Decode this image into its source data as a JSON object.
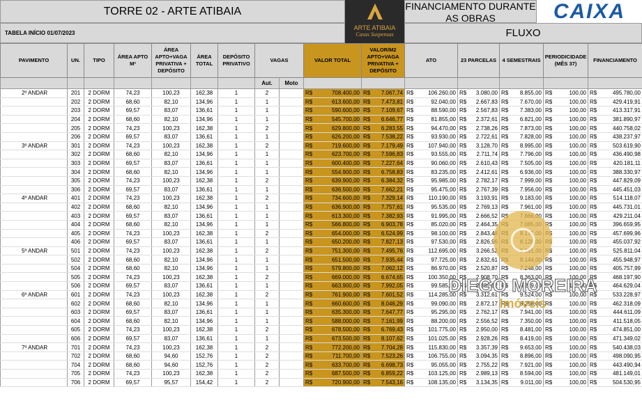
{
  "header": {
    "title": "TORRE 02 - ARTE ATIBAIA",
    "start": "TABELA INÍCIO 01/07/2023",
    "logo": "ARTE ATIBAIA",
    "logo_sub": "Casas Suspensas",
    "financing": "FINANCIAMENTO DURANTE AS OBRAS",
    "flow": "FLUXO",
    "bank": "CAIXA"
  },
  "watermark": {
    "name": "DIEGO MOREIRA",
    "sub": "Imóveis"
  },
  "table": {
    "currency": "R$",
    "headers": [
      "PAVIMENTO",
      "UN.",
      "TIPO",
      "ÁREA APTO M²",
      "ÁREA APTO+VAGA PRIVATIVA + DEPÓSITO",
      "ÁREA TOTAL",
      "DEPÓSITO PRIVATIVO",
      "VAGAS",
      "VALOR TOTAL",
      "VALOR/M2 APTO+VAGA PRIVATIVA + DEPÓSITO",
      "ATO",
      "23 PARCELAS",
      "4 SEMESTRAIS",
      "PERIODICIDADE (MÊS 37)",
      "FINANCIAMENTO"
    ],
    "subheaders": [
      "Aut.",
      "Moto"
    ],
    "groups": [
      {
        "floor": "2º ANDAR",
        "rows": [
          [
            "201",
            "2 DORM",
            "74,23",
            "100,23",
            "162,38",
            "1",
            "2",
            "708.400,00",
            "7.067,74",
            "106.260,00",
            "3.080,00",
            "8.855,00",
            "100,00",
            "495.780,00"
          ],
          [
            "202",
            "2 DORM",
            "68,60",
            "82,10",
            "134,96",
            "1",
            "1",
            "613.600,00",
            "7.473,81",
            "92.040,00",
            "2.667,83",
            "7.670,00",
            "100,00",
            "429.419,91"
          ],
          [
            "203",
            "2 DORM",
            "69,57",
            "83,07",
            "136,61",
            "1",
            "1",
            "590.600,00",
            "7.109,67",
            "88.590,00",
            "2.567,83",
            "7.383,00",
            "100,00",
            "413.317,91"
          ],
          [
            "204",
            "2 DORM",
            "68,60",
            "82,10",
            "134,96",
            "1",
            "1",
            "545.700,00",
            "6.646,77",
            "81.855,00",
            "2.372,61",
            "6.821,00",
            "100,00",
            "381.890,97"
          ],
          [
            "205",
            "2 DORM",
            "74,23",
            "100,23",
            "162,38",
            "1",
            "2",
            "629.800,00",
            "6.283,55",
            "94.470,00",
            "2.738,26",
            "7.873,00",
            "100,00",
            "440.758,02"
          ],
          [
            "206",
            "2 DORM",
            "69,57",
            "83,07",
            "136,61",
            "1",
            "1",
            "626.200,00",
            "7.538,22",
            "93.930,00",
            "2.722,61",
            "7.828,00",
            "100,00",
            "438.237,97"
          ]
        ]
      },
      {
        "floor": "3º ANDAR",
        "rows": [
          [
            "301",
            "2 DORM",
            "74,23",
            "100,23",
            "162,38",
            "1",
            "2",
            "719.600,00",
            "7.179,49",
            "107.940,00",
            "3.128,70",
            "8.995,00",
            "100,00",
            "503.619,90"
          ],
          [
            "302",
            "2 DORM",
            "68,60",
            "82,10",
            "134,96",
            "1",
            "1",
            "623.700,00",
            "7.596,83",
            "93.555,00",
            "2.711,74",
            "7.796,00",
            "100,00",
            "436.490,98"
          ],
          [
            "303",
            "2 DORM",
            "69,57",
            "83,07",
            "136,61",
            "1",
            "1",
            "600.400,00",
            "7.227,64",
            "90.060,00",
            "2.610,43",
            "7.505,00",
            "100,00",
            "420.181,11"
          ],
          [
            "304",
            "2 DORM",
            "68,60",
            "82,10",
            "134,96",
            "1",
            "1",
            "554.900,00",
            "6.758,83",
            "83.235,00",
            "2.412,61",
            "6.936,00",
            "100,00",
            "388.330,97"
          ],
          [
            "305",
            "2 DORM",
            "74,23",
            "100,23",
            "162,38",
            "1",
            "2",
            "639.900,00",
            "6.384,32",
            "95.985,00",
            "2.782,17",
            "7.999,00",
            "100,00",
            "447.829,09"
          ],
          [
            "306",
            "2 DORM",
            "69,57",
            "83,07",
            "136,61",
            "1",
            "1",
            "636.500,00",
            "7.662,21",
            "95.475,00",
            "2.767,39",
            "7.956,00",
            "100,00",
            "445.451,03"
          ]
        ]
      },
      {
        "floor": "4º ANDAR",
        "rows": [
          [
            "401",
            "2 DORM",
            "74,23",
            "100,23",
            "162,38",
            "1",
            "2",
            "734.600,00",
            "7.329,14",
            "110.190,00",
            "3.193,91",
            "9.183,00",
            "100,00",
            "514.118,07"
          ],
          [
            "402",
            "2 DORM",
            "68,60",
            "82,10",
            "134,96",
            "1",
            "1",
            "636.900,00",
            "7.757,61",
            "95.535,00",
            "2.769,13",
            "7.961,00",
            "100,00",
            "445.731,01"
          ],
          [
            "403",
            "2 DORM",
            "69,57",
            "83,07",
            "136,61",
            "1",
            "1",
            "613.300,00",
            "7.382,93",
            "91.995,00",
            "2.666,52",
            "7.666,00",
            "100,00",
            "429.211,04"
          ],
          [
            "404",
            "2 DORM",
            "68,60",
            "82,10",
            "134,96",
            "1",
            "1",
            "566.800,00",
            "6.903,78",
            "85.020,00",
            "2.464,35",
            "7.085,00",
            "100,00",
            "396.659,95"
          ],
          [
            "405",
            "2 DORM",
            "74,23",
            "100,23",
            "162,38",
            "1",
            "2",
            "654.000,00",
            "6.524,99",
            "98.100,00",
            "2.843,48",
            "8.175,00",
            "100,00",
            "457.699,96"
          ],
          [
            "406",
            "2 DORM",
            "69,57",
            "83,07",
            "136,61",
            "1",
            "1",
            "650.200,00",
            "7.827,13",
            "97.530,00",
            "2.826,96",
            "8.128,00",
            "100,00",
            "455.037,92"
          ]
        ]
      },
      {
        "floor": "5º ANDAR",
        "rows": [
          [
            "501",
            "2 DORM",
            "74,23",
            "100,23",
            "162,38",
            "1",
            "2",
            "751.300,00",
            "7.495,76",
            "112.695,00",
            "3.266,52",
            "9.391,00",
            "100,00",
            "525.811,04"
          ],
          [
            "502",
            "2 DORM",
            "68,60",
            "82,10",
            "134,96",
            "1",
            "1",
            "651.500,00",
            "7.935,44",
            "97.725,00",
            "2.832,61",
            "8.144,00",
            "100,00",
            "455.948,97"
          ],
          [
            "504",
            "2 DORM",
            "68,60",
            "82,10",
            "134,96",
            "1",
            "1",
            "579.800,00",
            "7.062,12",
            "86.970,00",
            "2.520,87",
            "7.248,00",
            "100,00",
            "405.757,99"
          ],
          [
            "505",
            "2 DORM",
            "74,23",
            "100,23",
            "162,38",
            "1",
            "2",
            "669.000,00",
            "6.674,65",
            "100.350,00",
            "2.908,70",
            "8.363,00",
            "100,00",
            "468.197,90"
          ],
          [
            "506",
            "2 DORM",
            "69,57",
            "83,07",
            "136,61",
            "1",
            "1",
            "663.900,00",
            "7.992,05",
            "99.585,00",
            "2.886,52",
            "8.299,00",
            "100,00",
            "464.629,04"
          ]
        ]
      },
      {
        "floor": "6º ANDAR",
        "rows": [
          [
            "601",
            "2 DORM",
            "74,23",
            "100,23",
            "162,38",
            "1",
            "2",
            "761.900,00",
            "7.601,52",
            "114.285,00",
            "3.312,61",
            "9.524,00",
            "100,00",
            "533.228,97"
          ],
          [
            "602",
            "2 DORM",
            "68,60",
            "82,10",
            "134,96",
            "1",
            "1",
            "660.600,00",
            "8.046,29",
            "99.090,00",
            "2.872,17",
            "8.258,00",
            "100,00",
            "462.318,09"
          ],
          [
            "603",
            "2 DORM",
            "69,57",
            "83,07",
            "136,61",
            "1",
            "1",
            "635.300,00",
            "7.647,77",
            "95.295,00",
            "2.762,17",
            "7.941,00",
            "100,00",
            "444.611,09"
          ],
          [
            "604",
            "2 DORM",
            "68,60",
            "82,10",
            "134,96",
            "1",
            "1",
            "588.000,00",
            "7.161,99",
            "88.200,00",
            "2.556,52",
            "7.350,00",
            "100,00",
            "411.518,05"
          ],
          [
            "605",
            "2 DORM",
            "74,23",
            "100,23",
            "162,38",
            "1",
            "2",
            "678.500,00",
            "6.769,43",
            "101.775,00",
            "2.950,00",
            "8.481,00",
            "100,00",
            "474.851,00"
          ],
          [
            "606",
            "2 DORM",
            "69,57",
            "83,07",
            "136,61",
            "1",
            "1",
            "673.500,00",
            "8.107,62",
            "101.025,00",
            "2.928,26",
            "8.419,00",
            "100,00",
            "471.349,02"
          ]
        ]
      },
      {
        "floor": "7º ANDAR",
        "rows": [
          [
            "701",
            "2 DORM",
            "74,23",
            "100,23",
            "162,38",
            "1",
            "2",
            "772.200,00",
            "7.704,28",
            "115.830,00",
            "3.357,39",
            "9.653,00",
            "100,00",
            "540.438,03"
          ],
          [
            "702",
            "2 DORM",
            "68,60",
            "94,60",
            "152,76",
            "1",
            "2",
            "711.700,00",
            "7.523,26",
            "106.755,00",
            "3.094,35",
            "8.896,00",
            "100,00",
            "498.090,95"
          ],
          [
            "704",
            "2 DORM",
            "68,60",
            "94,60",
            "152,76",
            "1",
            "2",
            "633.700,00",
            "6.698,73",
            "95.055,00",
            "2.755,22",
            "7.921,00",
            "100,00",
            "443.490,94"
          ],
          [
            "705",
            "2 DORM",
            "74,23",
            "100,23",
            "162,38",
            "1",
            "2",
            "687.500,00",
            "6.859,22",
            "103.125,00",
            "2.989,13",
            "8.594,00",
            "100,00",
            "481.149,01"
          ],
          [
            "706",
            "2 DORM",
            "69,57",
            "95,57",
            "154,42",
            "1",
            "2",
            "720.900,00",
            "7.543,16",
            "108.135,00",
            "3.134,35",
            "9.011,00",
            "100,00",
            "504.530,95"
          ]
        ]
      }
    ]
  }
}
